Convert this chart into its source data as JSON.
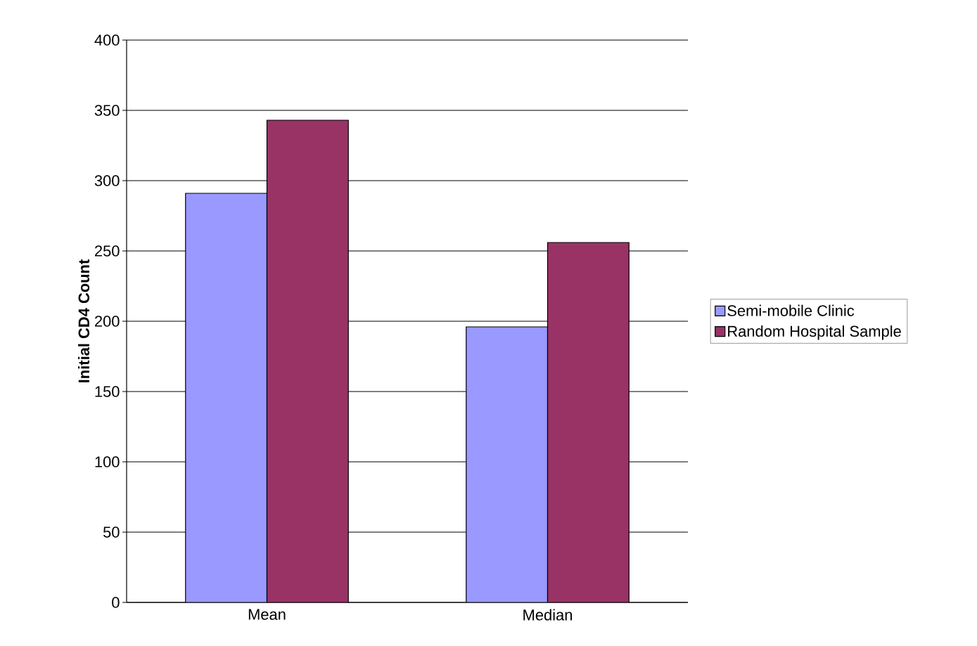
{
  "chart_data": {
    "type": "bar",
    "ylabel": "Initial CD4 Count",
    "categories": [
      "Mean",
      "Median"
    ],
    "series": [
      {
        "name": "Semi-mobile Clinic",
        "color": "#9999ff",
        "values": [
          291,
          196
        ]
      },
      {
        "name": "Random Hospital Sample",
        "color": "#993366",
        "values": [
          343,
          256
        ]
      }
    ],
    "ylim": [
      0,
      400
    ],
    "yticks": [
      0,
      50,
      100,
      150,
      200,
      250,
      300,
      350,
      400
    ],
    "grid": "y",
    "legend": "right"
  }
}
